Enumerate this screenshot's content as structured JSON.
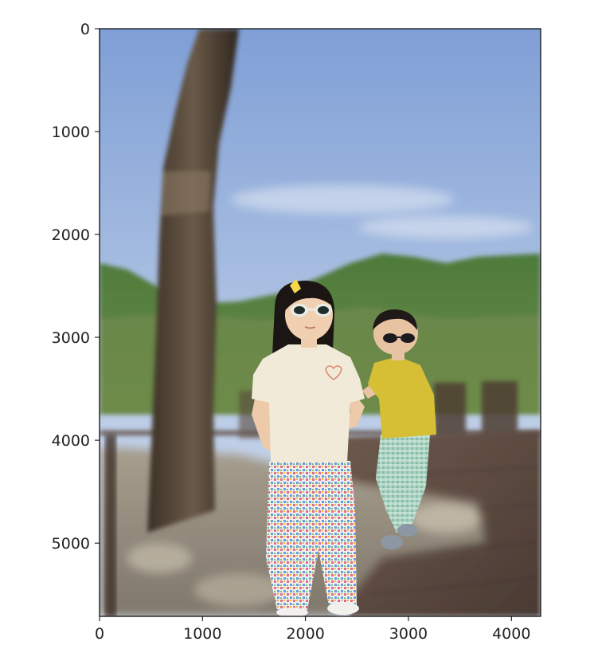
{
  "figure": {
    "image_description_icon": "photo-icon",
    "x_ticks": [
      {
        "label": "0",
        "value": 0
      },
      {
        "label": "1000",
        "value": 1000
      },
      {
        "label": "2000",
        "value": 2000
      },
      {
        "label": "3000",
        "value": 3000
      },
      {
        "label": "4000",
        "value": 4000
      }
    ],
    "y_ticks": [
      {
        "label": "0",
        "value": 0
      },
      {
        "label": "1000",
        "value": 1000
      },
      {
        "label": "2000",
        "value": 2000
      },
      {
        "label": "3000",
        "value": 3000
      },
      {
        "label": "4000",
        "value": 4000
      },
      {
        "label": "5000",
        "value": 5000
      }
    ],
    "x_range": [
      0,
      4284
    ],
    "y_range": [
      0,
      5712
    ],
    "colors": {
      "sky_top": "#8fa9d6",
      "sky_bottom": "#c9d7ea",
      "mountain": "#4f7a3c",
      "deck": "#5e4a40",
      "girl_shirt": "#f1e8d8",
      "boy_shirt": "#d8c23a",
      "boy_pants": "#8fb9a5"
    }
  }
}
